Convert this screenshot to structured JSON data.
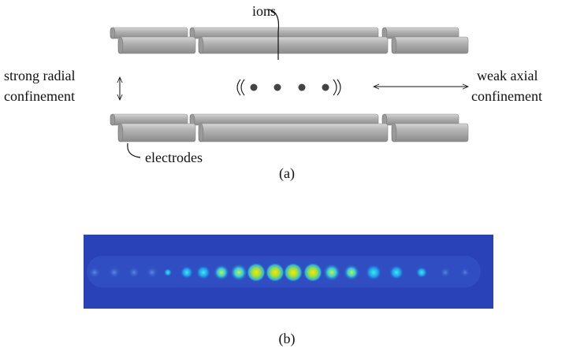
{
  "labels": {
    "ions": "ions",
    "radial": [
      "strong radial",
      "confinement"
    ],
    "axial": [
      "weak axial",
      "confinement"
    ],
    "electrodes": "electrodes"
  },
  "panels": [
    "(a)",
    "(b)"
  ]
}
